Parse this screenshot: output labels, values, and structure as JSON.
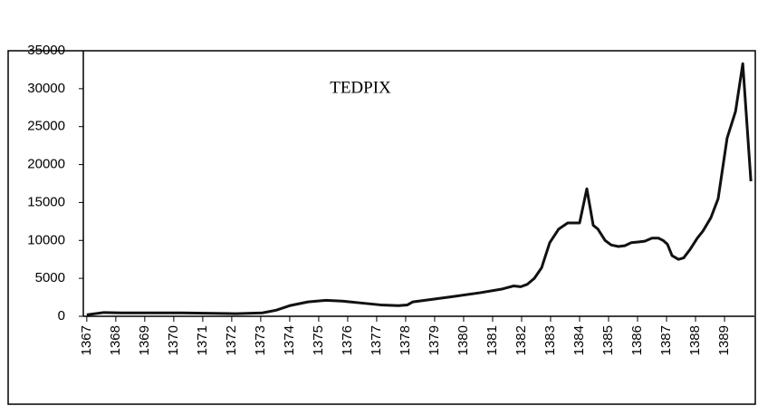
{
  "chart_data": {
    "type": "line",
    "title": "TEDPIX",
    "x": [
      1367.0,
      1367.59,
      1368.22,
      1370.25,
      1372.13,
      1373.06,
      1373.53,
      1374.0,
      1374.63,
      1375.25,
      1375.81,
      1376.34,
      1377.13,
      1377.75,
      1378.06,
      1378.25,
      1378.84,
      1379.63,
      1380.56,
      1381.34,
      1381.72,
      1381.97,
      1382.19,
      1382.44,
      1382.69,
      1382.97,
      1383.28,
      1383.59,
      1384.0,
      1384.25,
      1384.47,
      1384.63,
      1384.88,
      1385.09,
      1385.34,
      1385.56,
      1385.78,
      1386.03,
      1386.25,
      1386.5,
      1386.72,
      1386.88,
      1387.03,
      1387.19,
      1387.41,
      1387.59,
      1387.81,
      1388.06,
      1388.25,
      1388.53,
      1388.78,
      1389.09,
      1389.38,
      1389.63,
      1389.91
    ],
    "series": [
      {
        "name": "TEDPIX",
        "color": "#111111",
        "values": [
          200,
          500,
          450,
          450,
          350,
          450,
          800,
          1400,
          1900,
          2100,
          2000,
          1800,
          1500,
          1400,
          1500,
          1900,
          2200,
          2600,
          3100,
          3600,
          4000,
          3900,
          4200,
          5000,
          6400,
          9700,
          11500,
          12300,
          12300,
          16800,
          12000,
          11500,
          10000,
          9400,
          9200,
          9300,
          9700,
          9800,
          9900,
          10300,
          10300,
          10000,
          9500,
          8000,
          7500,
          7700,
          8800,
          10300,
          11200,
          13000,
          15500,
          23500,
          27000,
          33300,
          17800
        ]
      }
    ],
    "xlim": [
      1366.88,
      1390.03
    ],
    "xticks": [
      1367,
      1368,
      1369,
      1370,
      1371,
      1372,
      1373,
      1374,
      1375,
      1376,
      1377,
      1378,
      1379,
      1380,
      1381,
      1382,
      1383,
      1384,
      1385,
      1386,
      1387,
      1388,
      1389
    ],
    "ylim": [
      0,
      35000
    ],
    "yticks": [
      0,
      5000,
      10000,
      15000,
      20000,
      25000,
      30000,
      35000
    ]
  }
}
